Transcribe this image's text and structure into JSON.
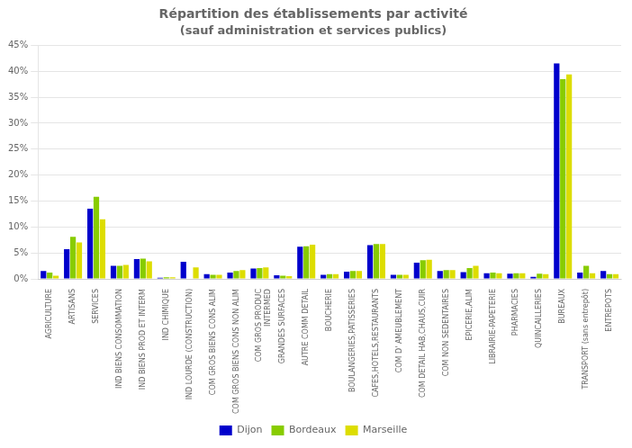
{
  "chart_data": {
    "type": "bar",
    "title": "Répartition des établissements par activité",
    "subtitle": "(sauf administration et services publics)",
    "categories": [
      "AGRICULTURE",
      "ARTISANS",
      "SERVICES",
      "IND BIENS CONSOMMATION",
      "IND BIENS PROD ET INTERM",
      "IND CHIMIQUE",
      "IND LOURDE (CONSTRUCTION)",
      "COM GROS BIENS CONS ALIM",
      "COM GROS BIENS CONS NON ALIM",
      "COM GROS PRODUC\nINTERMED",
      "GRANDES SURFACES",
      "AUTRE COMM DETAIL",
      "BOUCHERIE",
      "BOULANGERIES,PATISSERIES",
      "CAFES,HOTELS,RESTAURANTS",
      "COM D' AMEUBLEMENT",
      "COM DETAIL HAB,CHAUS,CUIR",
      "COM NON SEDENTAIRES",
      "EPICERIE,ALIM",
      "LIBRAIRIE-PAPETERIE",
      "PHARMACIES",
      "QUINCAILLERIES",
      "BUREAUX",
      "TRANSPORT (sans entrepôt)",
      "ENTREPOTS"
    ],
    "series": [
      {
        "name": "Dijon",
        "color": "#0000CC",
        "values": [
          1.5,
          5.7,
          13.5,
          2.5,
          3.8,
          0.2,
          3.3,
          0.9,
          1.2,
          2.0,
          0.7,
          6.2,
          0.8,
          1.4,
          6.5,
          0.8,
          3.1,
          1.5,
          1.3,
          1.1,
          1.0,
          0.4,
          41.5,
          1.2,
          1.5
        ]
      },
      {
        "name": "Bordeaux",
        "color": "#88CC00",
        "values": [
          1.2,
          8.1,
          15.8,
          2.5,
          3.9,
          0.3,
          0.0,
          0.8,
          1.5,
          2.1,
          0.6,
          6.3,
          0.9,
          1.5,
          6.7,
          0.8,
          3.6,
          1.7,
          2.1,
          1.2,
          1.1,
          1.0,
          38.5,
          2.5,
          0.9
        ]
      },
      {
        "name": "Marseille",
        "color": "#DDDD00",
        "values": [
          0.6,
          7.0,
          11.5,
          2.7,
          3.4,
          0.3,
          2.2,
          0.8,
          1.7,
          2.2,
          0.5,
          6.6,
          0.9,
          1.5,
          6.7,
          0.8,
          3.7,
          1.7,
          2.5,
          1.1,
          1.1,
          0.9,
          39.4,
          1.1,
          0.9
        ]
      }
    ],
    "ylim": [
      0,
      45
    ],
    "yticks": [
      {
        "value": 0,
        "label": "0%"
      },
      {
        "value": 5,
        "label": "5%"
      },
      {
        "value": 10,
        "label": "10%"
      },
      {
        "value": 15,
        "label": "15%"
      },
      {
        "value": 20,
        "label": "20%"
      },
      {
        "value": 25,
        "label": "25%"
      },
      {
        "value": 30,
        "label": "30%"
      },
      {
        "value": 35,
        "label": "35%"
      },
      {
        "value": 40,
        "label": "40%"
      },
      {
        "value": 45,
        "label": "45%"
      }
    ],
    "grid": true,
    "legend": "bottom"
  }
}
